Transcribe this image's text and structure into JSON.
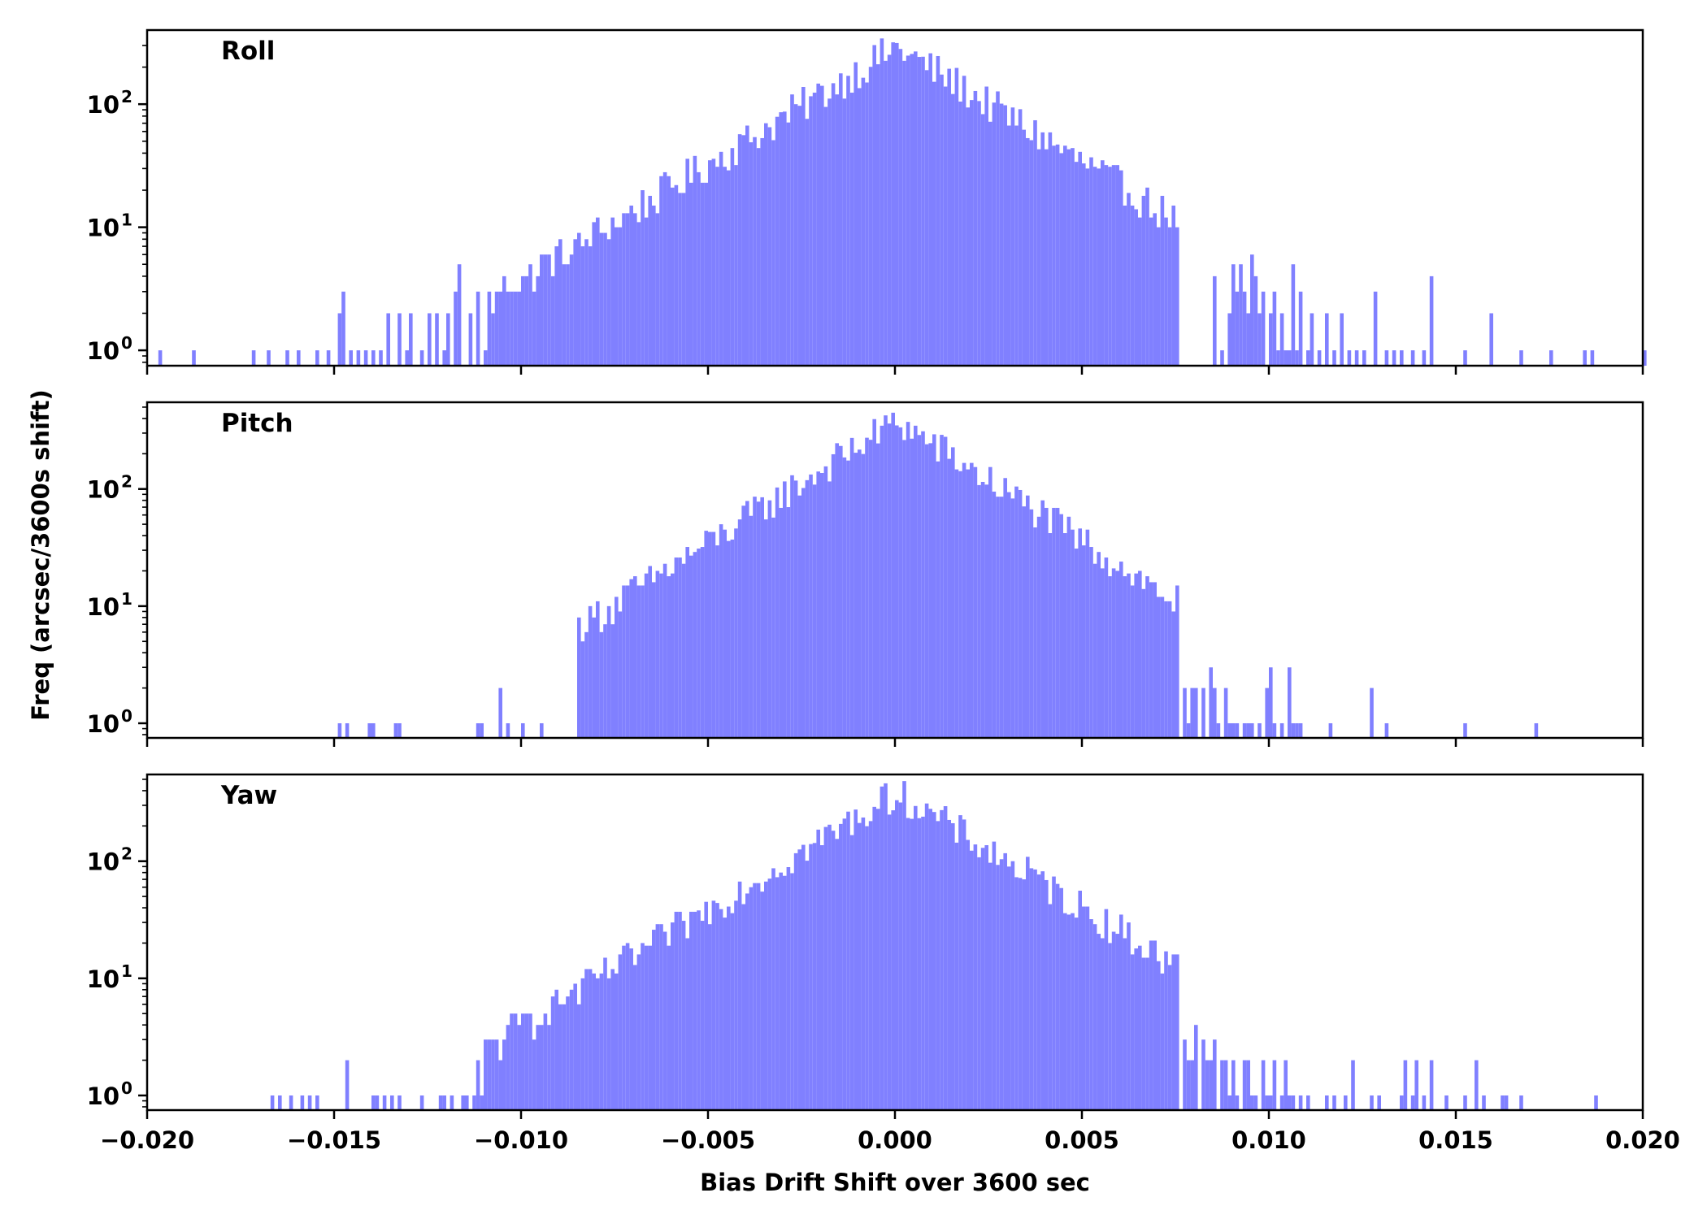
{
  "chart_data": {
    "type": "bar",
    "figure_title": "",
    "xlabel": "Bias Drift Shift over 3600 sec",
    "ylabel": "Freq (arcsec/3600s shift)",
    "xlim": [
      -0.02,
      0.02
    ],
    "x_ticks": [
      -0.02,
      -0.015,
      -0.01,
      -0.005,
      0.0,
      0.005,
      0.01,
      0.015,
      0.02
    ],
    "x_tick_labels": [
      "−0.020",
      "−0.015",
      "−0.010",
      "−0.005",
      "0.000",
      "0.005",
      "0.010",
      "0.015",
      "0.020"
    ],
    "yscale": "log",
    "y_ticks": [
      {
        "value": 1,
        "base": "10",
        "exp": "0"
      },
      {
        "value": 10,
        "base": "10",
        "exp": "1"
      },
      {
        "value": 100,
        "base": "10",
        "exp": "2"
      }
    ],
    "bar_color": "#8080ff",
    "bin_width": 0.0001,
    "panels": [
      {
        "name": "roll",
        "title": "Roll",
        "ylim": [
          0.75,
          400
        ],
        "peak": 290,
        "sigma": 0.0023,
        "lower_cutoff": -0.0109,
        "upper_cutoff": 0.0075,
        "tail_bins": [
          [
            -0.0197,
            1
          ],
          [
            -0.0188,
            1
          ],
          [
            -0.0172,
            1
          ],
          [
            -0.0168,
            1
          ],
          [
            -0.0163,
            1
          ],
          [
            -0.016,
            1
          ],
          [
            -0.0155,
            1
          ],
          [
            -0.0152,
            1
          ],
          [
            -0.0149,
            2
          ],
          [
            -0.0148,
            3
          ],
          [
            -0.0146,
            1
          ],
          [
            -0.0144,
            1
          ],
          [
            -0.0142,
            1
          ],
          [
            -0.014,
            1
          ],
          [
            -0.0138,
            1
          ],
          [
            -0.0136,
            2
          ],
          [
            -0.0133,
            2
          ],
          [
            -0.0131,
            1
          ],
          [
            -0.013,
            2
          ],
          [
            -0.0127,
            1
          ],
          [
            -0.0125,
            2
          ],
          [
            -0.0123,
            2
          ],
          [
            -0.0121,
            1
          ],
          [
            -0.012,
            2
          ],
          [
            -0.0118,
            3
          ],
          [
            -0.0117,
            5
          ],
          [
            -0.0114,
            2
          ],
          [
            -0.0112,
            3
          ],
          [
            -0.011,
            1
          ]
        ],
        "upper_tail_bins": [
          [
            0.0085,
            4
          ],
          [
            0.0087,
            1
          ],
          [
            0.0089,
            2
          ],
          [
            0.009,
            5
          ],
          [
            0.0091,
            3
          ],
          [
            0.0092,
            5
          ],
          [
            0.0093,
            3
          ],
          [
            0.0094,
            2
          ],
          [
            0.0095,
            6
          ],
          [
            0.0096,
            4
          ],
          [
            0.0097,
            2
          ],
          [
            0.0098,
            3
          ],
          [
            0.01,
            2
          ],
          [
            0.0101,
            3
          ],
          [
            0.0102,
            1
          ],
          [
            0.0103,
            2
          ],
          [
            0.0104,
            1
          ],
          [
            0.0105,
            1
          ],
          [
            0.0106,
            5
          ],
          [
            0.0107,
            1
          ],
          [
            0.0108,
            3
          ],
          [
            0.011,
            1
          ],
          [
            0.0111,
            2
          ],
          [
            0.0113,
            1
          ],
          [
            0.0115,
            2
          ],
          [
            0.0117,
            1
          ],
          [
            0.0119,
            2
          ],
          [
            0.0121,
            1
          ],
          [
            0.0123,
            1
          ],
          [
            0.0125,
            1
          ],
          [
            0.0128,
            3
          ],
          [
            0.0131,
            1
          ],
          [
            0.0133,
            1
          ],
          [
            0.0135,
            1
          ],
          [
            0.0138,
            1
          ],
          [
            0.0141,
            1
          ],
          [
            0.0143,
            4
          ],
          [
            0.0152,
            1
          ],
          [
            0.0159,
            2
          ],
          [
            0.0167,
            1
          ],
          [
            0.0175,
            1
          ],
          [
            0.0184,
            1
          ],
          [
            0.0186,
            1
          ],
          [
            0.02,
            1
          ]
        ]
      },
      {
        "name": "pitch",
        "title": "Pitch",
        "ylim": [
          0.75,
          550
        ],
        "peak": 380,
        "sigma": 0.0021,
        "lower_cutoff": -0.0085,
        "upper_cutoff": 0.0075,
        "tail_bins": [
          [
            -0.0149,
            1
          ],
          [
            -0.0147,
            1
          ],
          [
            -0.0141,
            1
          ],
          [
            -0.014,
            1
          ],
          [
            -0.0134,
            1
          ],
          [
            -0.0133,
            1
          ],
          [
            -0.0112,
            1
          ],
          [
            -0.0111,
            1
          ],
          [
            -0.0106,
            2
          ],
          [
            -0.0104,
            1
          ],
          [
            -0.01,
            1
          ],
          [
            -0.0095,
            1
          ]
        ],
        "upper_tail_bins": [
          [
            0.0077,
            2
          ],
          [
            0.0078,
            1
          ],
          [
            0.0079,
            2
          ],
          [
            0.008,
            2
          ],
          [
            0.0082,
            2
          ],
          [
            0.0084,
            3
          ],
          [
            0.0085,
            2
          ],
          [
            0.0086,
            1
          ],
          [
            0.0088,
            2
          ],
          [
            0.0089,
            1
          ],
          [
            0.009,
            1
          ],
          [
            0.0091,
            1
          ],
          [
            0.0093,
            1
          ],
          [
            0.0094,
            1
          ],
          [
            0.0095,
            1
          ],
          [
            0.0097,
            1
          ],
          [
            0.0099,
            2
          ],
          [
            0.01,
            3
          ],
          [
            0.0101,
            1
          ],
          [
            0.0103,
            1
          ],
          [
            0.0105,
            3
          ],
          [
            0.0106,
            1
          ],
          [
            0.0107,
            1
          ],
          [
            0.0108,
            1
          ],
          [
            0.0116,
            1
          ],
          [
            0.0127,
            2
          ],
          [
            0.0131,
            1
          ],
          [
            0.0152,
            1
          ],
          [
            0.0171,
            1
          ]
        ]
      },
      {
        "name": "yaw",
        "title": "Yaw",
        "ylim": [
          0.75,
          550
        ],
        "peak": 380,
        "sigma": 0.0022,
        "lower_cutoff": -0.011,
        "upper_cutoff": 0.0075,
        "tail_bins": [
          [
            -0.0167,
            1
          ],
          [
            -0.0165,
            1
          ],
          [
            -0.0162,
            1
          ],
          [
            -0.0159,
            1
          ],
          [
            -0.0157,
            1
          ],
          [
            -0.0155,
            1
          ],
          [
            -0.0147,
            2
          ],
          [
            -0.014,
            1
          ],
          [
            -0.0139,
            1
          ],
          [
            -0.0137,
            1
          ],
          [
            -0.0135,
            1
          ],
          [
            -0.0133,
            1
          ],
          [
            -0.0127,
            1
          ],
          [
            -0.0122,
            1
          ],
          [
            -0.0121,
            1
          ],
          [
            -0.0119,
            1
          ],
          [
            -0.0116,
            1
          ],
          [
            -0.0115,
            1
          ],
          [
            -0.0113,
            1
          ],
          [
            -0.0112,
            2
          ],
          [
            -0.0111,
            1
          ]
        ],
        "upper_tail_bins": [
          [
            0.0077,
            3
          ],
          [
            0.0078,
            2
          ],
          [
            0.0079,
            2
          ],
          [
            0.008,
            4
          ],
          [
            0.0082,
            3
          ],
          [
            0.0083,
            2
          ],
          [
            0.0084,
            2
          ],
          [
            0.0085,
            3
          ],
          [
            0.0087,
            2
          ],
          [
            0.0088,
            2
          ],
          [
            0.0089,
            1
          ],
          [
            0.009,
            2
          ],
          [
            0.0091,
            1
          ],
          [
            0.0093,
            2
          ],
          [
            0.0094,
            2
          ],
          [
            0.0095,
            1
          ],
          [
            0.0096,
            1
          ],
          [
            0.0098,
            2
          ],
          [
            0.0099,
            1
          ],
          [
            0.01,
            1
          ],
          [
            0.0101,
            2
          ],
          [
            0.0103,
            1
          ],
          [
            0.0104,
            2
          ],
          [
            0.0105,
            1
          ],
          [
            0.0106,
            1
          ],
          [
            0.0108,
            1
          ],
          [
            0.011,
            1
          ],
          [
            0.0115,
            1
          ],
          [
            0.0117,
            1
          ],
          [
            0.012,
            1
          ],
          [
            0.0122,
            2
          ],
          [
            0.0127,
            1
          ],
          [
            0.0129,
            1
          ],
          [
            0.0135,
            1
          ],
          [
            0.0136,
            2
          ],
          [
            0.0138,
            1
          ],
          [
            0.0139,
            2
          ],
          [
            0.0141,
            1
          ],
          [
            0.0143,
            2
          ],
          [
            0.0147,
            1
          ],
          [
            0.0152,
            1
          ],
          [
            0.0155,
            2
          ],
          [
            0.0157,
            1
          ],
          [
            0.0162,
            1
          ],
          [
            0.0163,
            1
          ],
          [
            0.0167,
            1
          ],
          [
            0.0187,
            1
          ]
        ]
      }
    ]
  }
}
